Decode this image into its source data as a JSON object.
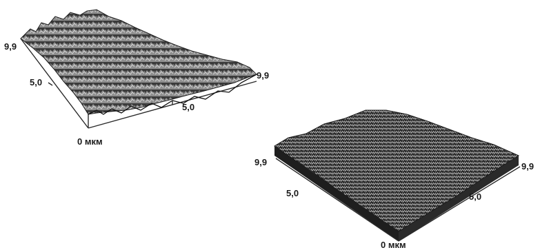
{
  "figure": {
    "plots": [
      {
        "id": "rough-surface",
        "labels": {
          "y_max": "9,9",
          "y_mid": "5,0",
          "x_max": "9,9",
          "x_mid": "5,0",
          "origin": "0 мкм"
        }
      },
      {
        "id": "smooth-surface",
        "labels": {
          "y_max": "9,9",
          "y_mid": "5,0",
          "x_max": "9,9",
          "x_mid": "5,0",
          "origin": "0 мкм"
        }
      }
    ]
  },
  "colors": {
    "background": "#ffffff",
    "surface_dark": "#1e1e1e",
    "surface_light": "#cfcfcf",
    "axis": "#2a2a2a"
  }
}
